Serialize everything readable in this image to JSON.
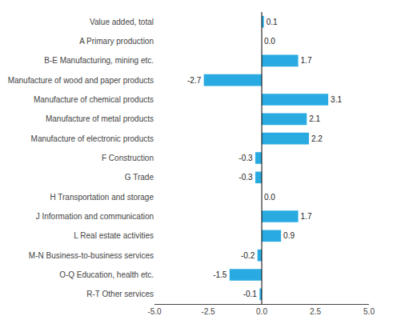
{
  "chart_data": {
    "type": "bar",
    "orientation": "horizontal",
    "categories": [
      "R-T Other services",
      "O-Q Education, health etc.",
      "M-N Business-to-business services",
      "L Real estate activities",
      "J Information and communication",
      "H Transportation and storage",
      "G Trade",
      "F Construction",
      "Manufacture of electronic products",
      "Manufacture of metal products",
      "Manufacture of chemical products",
      "Manufacture of wood and paper products",
      "B-E Manufacturing, mining etc.",
      "A Primary production",
      "Value added, total"
    ],
    "values": [
      -0.1,
      -1.5,
      -0.2,
      0.9,
      1.7,
      0.0,
      -0.3,
      -0.3,
      2.2,
      2.1,
      3.1,
      -2.7,
      1.7,
      0.0,
      0.1
    ],
    "value_labels": [
      "-0.1",
      "-1.5",
      "-0.2",
      "0.9",
      "1.7",
      "0.0",
      "-0.3",
      "-0.3",
      "2.2",
      "2.1",
      "3.1",
      "-2.7",
      "1.7",
      "0.0",
      "0.1"
    ],
    "data_labels": true,
    "color": "#29abe2",
    "xlim": [
      -5.0,
      5.0
    ],
    "xticks": [
      {
        "value": -5.0,
        "label": "-5.0"
      },
      -2.5,
      {
        "value": 0.0,
        "label": "0.0"
      },
      2.5,
      {
        "value": 5.0,
        "label": "5.0"
      }
    ],
    "grid": false
  }
}
